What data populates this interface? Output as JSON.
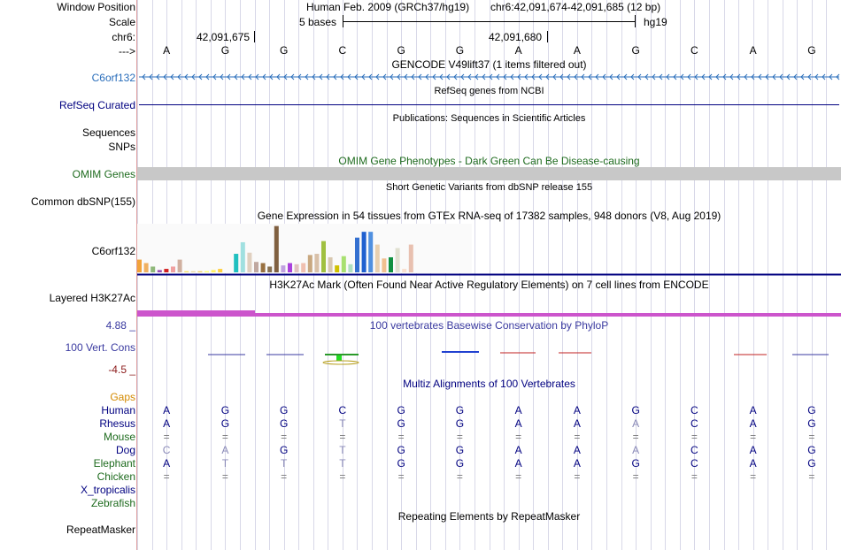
{
  "header": {
    "window_position_label": "Window Position",
    "assembly": "Human Feb. 2009 (GRCh37/hg19)",
    "position": "chr6:42,091,674-42,091,685 (12 bp)",
    "scale_label": "Scale",
    "scale_text": "5 bases",
    "db": "hg19",
    "chrom_label": "chr6:",
    "coord_left": "42,091,675",
    "coord_right": "42,091,680",
    "strand_label": "--->"
  },
  "colors": {
    "link_blue": "#2a6ebb",
    "navy": "#000080",
    "omim_green": "#1e6b1e",
    "phylop_blue": "#3a3aa0",
    "phylop_red": "#8b1a1a",
    "gaps_orange": "#d48a00",
    "h3k27ac_magenta": "#cc55cc"
  },
  "sequence": [
    "A",
    "G",
    "G",
    "C",
    "G",
    "G",
    "A",
    "A",
    "G",
    "C",
    "A",
    "G"
  ],
  "labels": {
    "c6orf132_gene": "C6orf132",
    "refseq": "RefSeq Curated",
    "sequences": "Sequences",
    "snps": "SNPs",
    "omim": "OMIM Genes",
    "dbsnp": "Common dbSNP(155)",
    "gtex_gene": "C6orf132",
    "h3k27ac": "Layered H3K27Ac",
    "phylop_max": "4.88 _",
    "phylop": "100 Vert. Cons",
    "phylop_min": "-4.5 _",
    "gaps": "Gaps",
    "repeatmasker": "RepeatMasker"
  },
  "tracks": {
    "gencode": "GENCODE V49lift37 (1 items filtered out)",
    "refseq": "RefSeq genes from NCBI",
    "publications": "Publications: Sequences in Scientific Articles",
    "omim": "OMIM Gene Phenotypes - Dark Green Can Be Disease-causing",
    "dbsnp": "Short Genetic Variants from dbSNP release 155",
    "gtex": "Gene Expression in 54 tissues from GTEx RNA-seq of 17382 samples, 948 donors (V8, Aug 2019)",
    "h3k27ac": "H3K27Ac Mark (Often Found Near Active Regulatory Elements) on 7 cell lines from ENCODE",
    "phylop": "100 vertebrates Basewise Conservation by PhyloP",
    "multiz": "Multiz Alignments of 100 Vertebrates",
    "repeatmasker": "Repeating Elements by RepeatMasker"
  },
  "alignment": [
    {
      "species": "Human",
      "color": "#000080",
      "bases": [
        "A",
        "G",
        "G",
        "C",
        "G",
        "G",
        "A",
        "A",
        "G",
        "C",
        "A",
        "G"
      ]
    },
    {
      "species": "Rhesus",
      "color": "#000080",
      "bases": [
        "A",
        "G",
        "G",
        "T",
        "G",
        "G",
        "A",
        "A",
        "A",
        "C",
        "A",
        "G"
      ]
    },
    {
      "species": "Mouse",
      "color": "#1e6b1e",
      "bases": [
        "=",
        "=",
        "=",
        "=",
        "=",
        "=",
        "=",
        "=",
        "=",
        "=",
        "=",
        "="
      ]
    },
    {
      "species": "Dog",
      "color": "#000080",
      "bases": [
        "C",
        "A",
        "G",
        "T",
        "G",
        "G",
        "A",
        "A",
        "A",
        "C",
        "A",
        "G"
      ]
    },
    {
      "species": "Elephant",
      "color": "#1e6b1e",
      "bases": [
        "A",
        "T",
        "T",
        "T",
        "G",
        "G",
        "A",
        "A",
        "G",
        "C",
        "A",
        "G"
      ]
    },
    {
      "species": "Chicken",
      "color": "#1e6b1e",
      "bases": [
        "=",
        "=",
        "=",
        "=",
        "=",
        "=",
        "=",
        "=",
        "=",
        "=",
        "=",
        "="
      ]
    },
    {
      "species": "X_tropicalis",
      "color": "#000080",
      "bases": [
        "",
        "",
        "",
        "",
        "",
        "",
        "",
        "",
        "",
        "",
        "",
        ""
      ]
    },
    {
      "species": "Zebrafish",
      "color": "#1e6b1e",
      "bases": [
        "",
        "",
        "",
        "",
        "",
        "",
        "",
        "",
        "",
        "",
        "",
        ""
      ]
    }
  ],
  "gtex_bars": {
    "values": [
      11,
      8,
      5,
      2,
      3,
      5,
      11,
      1,
      1,
      1,
      1,
      2,
      3,
      16,
      26,
      17,
      9,
      8,
      5,
      40,
      6,
      8,
      7,
      8,
      15,
      16,
      27,
      13,
      6,
      14,
      7,
      30,
      35,
      35,
      24,
      12,
      13,
      21,
      3,
      24
    ],
    "colors": [
      "#f2a33a",
      "#f0b060",
      "#8fb87a",
      "#9b4eb0",
      "#d22020",
      "#f0a0a0",
      "#d0b0a0",
      "#f7e060",
      "#e8d8a0",
      "#f0d060",
      "#ffff66",
      "#fff060",
      "#ffd040",
      "#20c0c0",
      "#a0e0e0",
      "#e0d0c0",
      "#c0a8a0",
      "#987040",
      "#887050",
      "#806040",
      "#c0a0e0",
      "#aa40dd",
      "#e0c0c0",
      "#f0c0b0",
      "#c8a880",
      "#d8c0a8",
      "#a0c040",
      "#d8c8b0",
      "#d0c000",
      "#a8e070",
      "#b0e0c0",
      "#3470d0",
      "#2060d0",
      "#5090e0",
      "#e8d0b0",
      "#f0c090",
      "#109040",
      "#e0e0d0",
      "#f8e0d0",
      "#e8c0b0"
    ]
  }
}
